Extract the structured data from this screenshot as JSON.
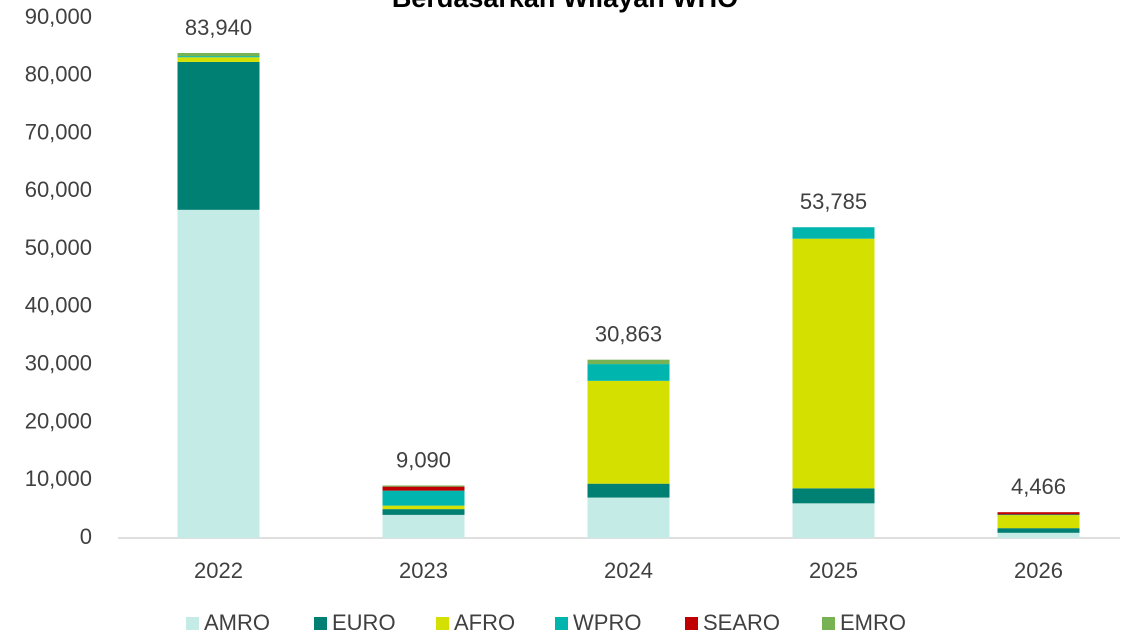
{
  "chart_data": {
    "type": "stacked_bar",
    "title": "Berdasarkan Wilayah WHO",
    "categories": [
      "2022",
      "2023",
      "2024",
      "2025",
      "2026"
    ],
    "series": [
      {
        "name": "AMRO",
        "color": "#c5ebe6",
        "values": [
          56800,
          4000,
          7000,
          6000,
          900
        ]
      },
      {
        "name": "EURO",
        "color": "#007f73",
        "values": [
          25600,
          1000,
          2400,
          2600,
          800
        ]
      },
      {
        "name": "AFRO",
        "color": "#d4e000",
        "values": [
          800,
          600,
          17800,
          43200,
          2266
        ]
      },
      {
        "name": "WPRO",
        "color": "#00b5ad",
        "values": [
          200,
          2600,
          2900,
          1985,
          100
        ]
      },
      {
        "name": "SEARO",
        "color": "#c00000",
        "values": [
          0,
          690,
          0,
          0,
          400
        ]
      },
      {
        "name": "EMRO",
        "color": "#77b255",
        "values": [
          540,
          200,
          763,
          0,
          0
        ]
      }
    ],
    "totals": [
      83940,
      9090,
      30863,
      53785,
      4466
    ],
    "total_labels": [
      "83,940",
      "9,090",
      "30,863",
      "53,785",
      "4,466"
    ],
    "ylim": [
      0,
      90000
    ],
    "yticks": [
      0,
      {
        "value": 10000,
        "label": "10,000"
      },
      {
        "value": 20000,
        "label": "20,000"
      },
      {
        "value": 30000,
        "label": "30,000"
      },
      {
        "value": 40000,
        "label": "40,000"
      },
      {
        "value": 50000,
        "label": "50,000"
      },
      {
        "value": 60000,
        "label": "60,000"
      },
      {
        "value": 70000,
        "label": "70,000"
      },
      {
        "value": 80000,
        "label": "80,000"
      },
      {
        "value": 90000,
        "label": "90,000"
      }
    ],
    "legend": "bottom"
  }
}
